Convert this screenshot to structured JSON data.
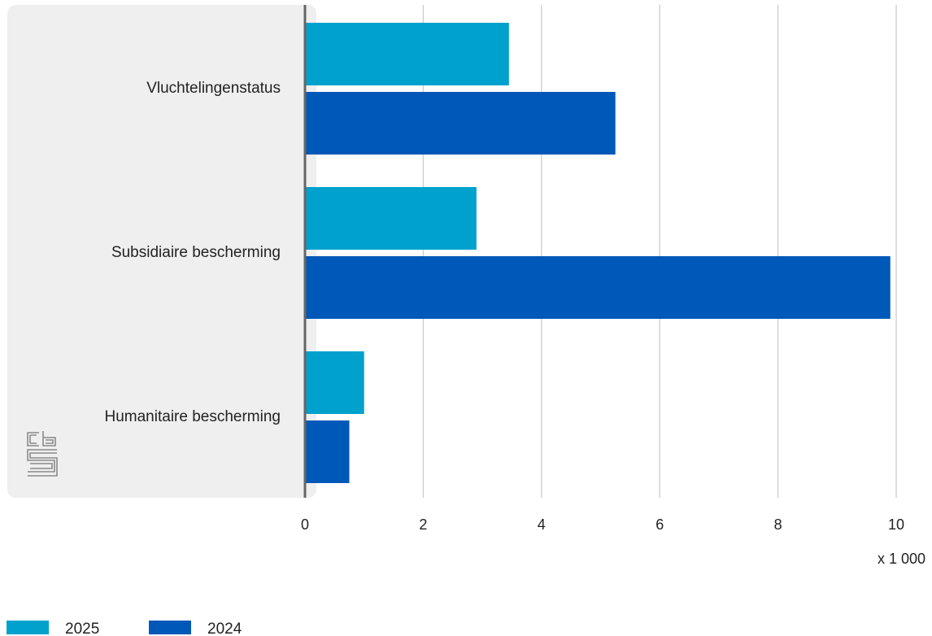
{
  "chart_data": {
    "type": "bar",
    "orientation": "horizontal",
    "categories": [
      "Vluchtelingenstatus",
      "Subsidiaire bescherming",
      "Humanitaire bescherming"
    ],
    "series": [
      {
        "name": "2025",
        "values": [
          3.45,
          2.9,
          1.0
        ],
        "color": "#00a1cd"
      },
      {
        "name": "2024",
        "values": [
          5.25,
          9.9,
          0.75
        ],
        "color": "#0058b8"
      }
    ],
    "xlim": [
      0,
      10
    ],
    "xticks": [
      "0",
      "2",
      "4",
      "6",
      "8",
      "10"
    ],
    "unit_label": "x 1 000",
    "grid": true,
    "legend_position": "bottom-left",
    "label_panel_color": "#efefef",
    "logo": "cbs"
  }
}
